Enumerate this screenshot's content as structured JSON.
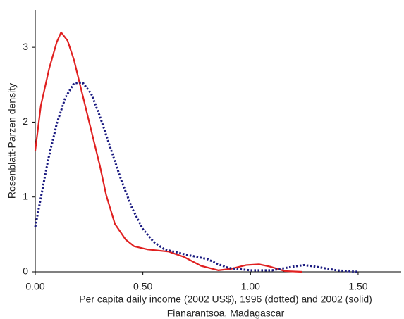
{
  "chart_data": {
    "type": "line",
    "x_label": "Per capita daily income (2002 US$), 1996 (dotted) and 2002 (solid)",
    "x_label_2": "Fianarantsoa, Madagascar",
    "y_label": "Rosenblatt-Parzen density",
    "xlim": [
      0,
      1.7
    ],
    "ylim": [
      0,
      3.5
    ],
    "xticks": [
      {
        "value": 0,
        "label": "0.00"
      },
      {
        "value": 0.5,
        "label": "0.50"
      },
      {
        "value": 1,
        "label": "1.00"
      },
      {
        "value": 1.5,
        "label": "1.50"
      }
    ],
    "yticks": [
      0,
      1,
      2,
      3
    ],
    "grid": false,
    "series": [
      {
        "color": "#e02020",
        "style": "solid",
        "x": [
          0,
          0.026,
          0.065,
          0.1,
          0.12,
          0.15,
          0.18,
          0.22,
          0.26,
          0.3,
          0.33,
          0.37,
          0.42,
          0.46,
          0.52,
          0.62,
          0.69,
          0.77,
          0.85,
          0.91,
          0.98,
          1.04,
          1.09,
          1.16,
          1.24
        ],
        "values": [
          1.62,
          2.22,
          2.72,
          3.07,
          3.2,
          3.09,
          2.83,
          2.36,
          1.89,
          1.42,
          1.02,
          0.64,
          0.43,
          0.34,
          0.3,
          0.27,
          0.2,
          0.08,
          0.02,
          0.04,
          0.09,
          0.1,
          0.07,
          0.01,
          0
        ]
      },
      {
        "color": "#1a1a80",
        "style": "dotted",
        "x": [
          0,
          0.03,
          0.06,
          0.1,
          0.14,
          0.18,
          0.22,
          0.26,
          0.3,
          0.35,
          0.4,
          0.45,
          0.5,
          0.55,
          0.6,
          0.7,
          0.8,
          0.85,
          0.9,
          1.0,
          1.1,
          1.2,
          1.25,
          1.3,
          1.4,
          1.5
        ],
        "values": [
          0.6,
          1.05,
          1.5,
          1.98,
          2.33,
          2.52,
          2.53,
          2.38,
          2.08,
          1.65,
          1.22,
          0.85,
          0.57,
          0.4,
          0.3,
          0.23,
          0.17,
          0.1,
          0.05,
          0.02,
          0.02,
          0.07,
          0.09,
          0.07,
          0.02,
          0
        ]
      }
    ]
  }
}
